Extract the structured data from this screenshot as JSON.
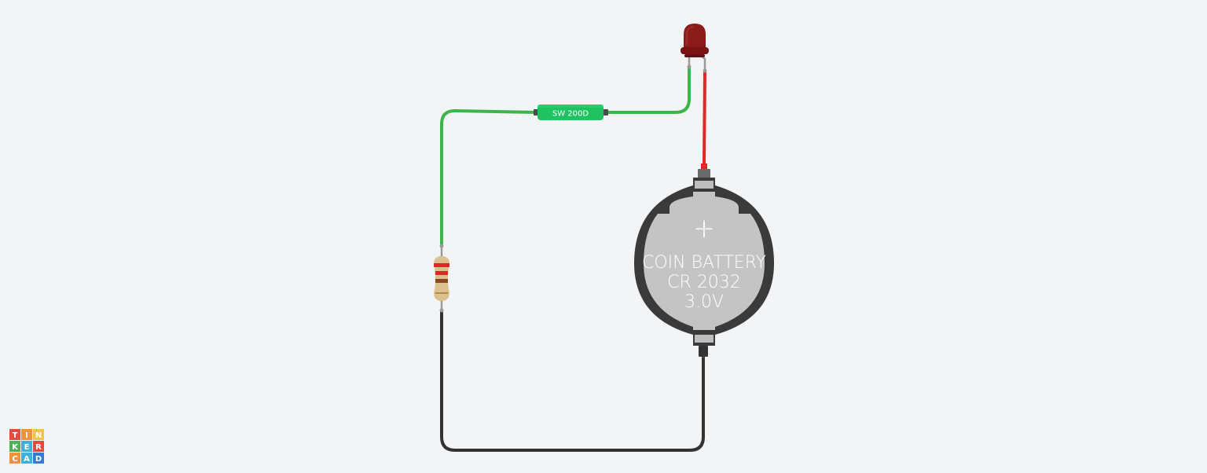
{
  "circuit": {
    "switch": {
      "label": "SW 200D",
      "color": "#1ec261"
    },
    "battery": {
      "polarity_symbol": "+",
      "line1": "COIN BATTERY",
      "line2": "CR 2032",
      "line3": "3.0V",
      "body_color": "#c4c4c4",
      "holder_color": "#3a3a3a"
    },
    "led": {
      "color": "#8b1a1a"
    },
    "resistor": {
      "body_color": "#dcc08e",
      "bands": [
        "#e32626",
        "#e32626",
        "#8b4a1c"
      ]
    },
    "wires": {
      "green": "#3db54a",
      "red": "#e32626",
      "black": "#333333"
    }
  },
  "logo": {
    "letters": [
      "T",
      "I",
      "N",
      "K",
      "E",
      "R",
      "C",
      "A",
      "D"
    ],
    "colors": [
      "#e8493f",
      "#f3923a",
      "#f7c443",
      "#4db25a",
      "#3fb0d8",
      "#e8493f",
      "#f3923a",
      "#3fb0d8",
      "#2d7dd2"
    ]
  }
}
